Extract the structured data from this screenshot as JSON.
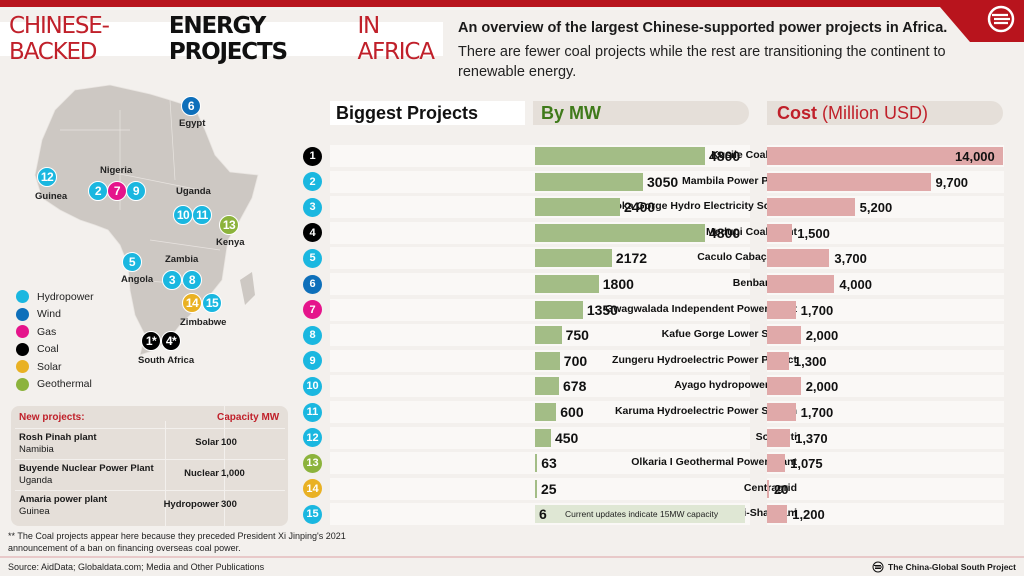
{
  "header": {
    "title_part1": "CHINESE-BACKED",
    "title_part2": "ENERGY PROJECTS",
    "title_part3": "IN AFRICA",
    "subtitle": "An overview of the largest Chinese-supported power projects in Africa.",
    "description": "There are fewer coal projects while the rest are transitioning the continent to renewable energy."
  },
  "colors": {
    "brand_red": "#b8141d",
    "hydropower": "#1ab7e0",
    "wind": "#0e6fba",
    "gas": "#e5148b",
    "coal": "#000000",
    "solar": "#e9b123",
    "geothermal": "#8cb33c",
    "mw_bar": "#a3bd86",
    "cost_bar": "#e0a9a9"
  },
  "map": {
    "markers": [
      {
        "label": "6",
        "type": "wind",
        "country": "Egypt"
      },
      {
        "label": "12",
        "type": "hydropower",
        "country": "Guinea"
      },
      {
        "label": "2",
        "type": "hydropower",
        "country": "Nigeria"
      },
      {
        "label": "7",
        "type": "gas",
        "country": "Nigeria"
      },
      {
        "label": "9",
        "type": "hydropower",
        "country": "Nigeria"
      },
      {
        "label": "10",
        "type": "hydropower",
        "country": "Uganda"
      },
      {
        "label": "11",
        "type": "hydropower",
        "country": "Uganda"
      },
      {
        "label": "13",
        "type": "geothermal",
        "country": "Kenya"
      },
      {
        "label": "5",
        "type": "hydropower",
        "country": "Angola"
      },
      {
        "label": "3",
        "type": "hydropower",
        "country": "Zambia"
      },
      {
        "label": "8",
        "type": "hydropower",
        "country": "Zambia"
      },
      {
        "label": "14",
        "type": "solar",
        "country": "Zimbabwe"
      },
      {
        "label": "15",
        "type": "hydropower",
        "country": "Zimbabwe"
      },
      {
        "label": "1*",
        "type": "coal",
        "country": "South Africa"
      },
      {
        "label": "4*",
        "type": "coal",
        "country": "South Africa"
      }
    ],
    "country_labels": [
      "Egypt",
      "Nigeria",
      "Guinea",
      "Uganda",
      "Kenya",
      "Angola",
      "Zambia",
      "Zimbabwe",
      "South Africa"
    ]
  },
  "legend": [
    {
      "label": "Hydropower",
      "type": "hydropower"
    },
    {
      "label": "Wind",
      "type": "wind"
    },
    {
      "label": "Gas",
      "type": "gas"
    },
    {
      "label": "Coal",
      "type": "coal"
    },
    {
      "label": "Solar",
      "type": "solar"
    },
    {
      "label": "Geothermal",
      "type": "geothermal"
    }
  ],
  "new_projects": {
    "header": "New projects:",
    "capacity_header": "Capacity MW",
    "rows": [
      {
        "name": "Rosh Pinah plant",
        "country": "Namibia",
        "type": "Solar",
        "capacity": "100"
      },
      {
        "name": "Buyende Nuclear Power Plant",
        "country": "Uganda",
        "type": "Nuclear",
        "capacity": "1,000"
      },
      {
        "name": "Amaria power plant",
        "country": "Guinea",
        "type": "Hydropower",
        "capacity": "300"
      }
    ]
  },
  "footnote": "** The Coal projects appear here because they preceded President Xi Jinping's 2021 announcement of a ban on financing overseas coal power.",
  "source": "Source: AidData; Globaldata.com; Media and Other Publications",
  "brand": "The China-Global South Project",
  "chart_headers": {
    "projects": "Biggest Projects",
    "mw": "By MW",
    "cost_bold": "Cost",
    "cost_unit": "(Million USD)"
  },
  "chart_data": {
    "type": "bar",
    "title": "Biggest Projects",
    "series": [
      {
        "name": "By MW",
        "values": [
          4800,
          3050,
          2400,
          4800,
          2172,
          1800,
          1350,
          750,
          700,
          678,
          600,
          450,
          63,
          25,
          6
        ]
      },
      {
        "name": "Cost (Million USD)",
        "values": [
          14000,
          9700,
          5200,
          1500,
          3700,
          4000,
          1700,
          2000,
          1300,
          2000,
          1700,
          1370,
          1075,
          20,
          1200
        ]
      }
    ],
    "categories": [
      "Kusile Coal Plant",
      "Mambila Power Project",
      "Batoka Gorge Hydro Electricity Scheme",
      "Medupi Coal Plant",
      "Caculo Cabaça dam",
      "Benban Park",
      "Gwagwalada Independent Power Plant",
      "Kafue Gorge Lower Station",
      "Zungeru Hydroelectric Power Project",
      "Ayago hydropower plant",
      "Karuma Hydroelectric Power Station",
      "Souapiti",
      "Olkaria I Geothermal Power Plant",
      "Centragrid",
      "Gwayi-Shangani"
    ],
    "projects": [
      {
        "num": "1",
        "name": "Kusile Coal Plant",
        "type": "coal",
        "mw": 4800,
        "mw_label": "4800",
        "cost": 14000,
        "cost_label": "14,000"
      },
      {
        "num": "2",
        "name": "Mambila Power Project",
        "type": "hydropower",
        "mw": 3050,
        "mw_label": "3050",
        "cost": 9700,
        "cost_label": "9,700"
      },
      {
        "num": "3",
        "name": "Batoka Gorge Hydro Electricity Scheme",
        "type": "hydropower",
        "mw": 2400,
        "mw_label": "2400",
        "cost": 5200,
        "cost_label": "5,200"
      },
      {
        "num": "4",
        "name": "Medupi Coal Plant",
        "type": "coal",
        "mw": 4800,
        "mw_label": "4800",
        "cost": 1500,
        "cost_label": "1,500"
      },
      {
        "num": "5",
        "name": "Caculo Cabaça dam",
        "type": "hydropower",
        "mw": 2172,
        "mw_label": "2172",
        "cost": 3700,
        "cost_label": "3,700"
      },
      {
        "num": "6",
        "name": "Benban Park",
        "type": "wind",
        "mw": 1800,
        "mw_label": "1800",
        "cost": 4000,
        "cost_label": "4,000"
      },
      {
        "num": "7",
        "name": "Gwagwalada Independent Power Plant",
        "type": "gas",
        "mw": 1350,
        "mw_label": "1350",
        "cost": 1700,
        "cost_label": "1,700"
      },
      {
        "num": "8",
        "name": "Kafue Gorge Lower Station",
        "type": "hydropower",
        "mw": 750,
        "mw_label": "750",
        "cost": 2000,
        "cost_label": "2,000"
      },
      {
        "num": "9",
        "name": "Zungeru Hydroelectric Power Project",
        "type": "hydropower",
        "mw": 700,
        "mw_label": "700",
        "cost": 1300,
        "cost_label": "1,300"
      },
      {
        "num": "10",
        "name": "Ayago hydropower plant",
        "type": "hydropower",
        "mw": 678,
        "mw_label": "678",
        "cost": 2000,
        "cost_label": "2,000"
      },
      {
        "num": "11",
        "name": "Karuma Hydroelectric Power Station",
        "type": "hydropower",
        "mw": 600,
        "mw_label": "600",
        "cost": 1700,
        "cost_label": "1,700"
      },
      {
        "num": "12",
        "name": "Souapiti",
        "type": "hydropower",
        "mw": 450,
        "mw_label": "450",
        "cost": 1370,
        "cost_label": "1,370"
      },
      {
        "num": "13",
        "name": "Olkaria I Geothermal Power Plant",
        "type": "geothermal",
        "mw": 63,
        "mw_label": "63",
        "cost": 1075,
        "cost_label": "1,075"
      },
      {
        "num": "14",
        "name": "Centragrid",
        "type": "solar",
        "mw": 25,
        "mw_label": "25",
        "cost": 20,
        "cost_label": "20"
      },
      {
        "num": "15",
        "name": "Gwayi-Shangani",
        "type": "hydropower",
        "mw": 6,
        "mw_label": "6",
        "cost": 1200,
        "cost_label": "1,200",
        "note": "Current updates indicate 15MW capacity"
      }
    ],
    "mw_max": 4800,
    "cost_max": 14000,
    "xlabel": "",
    "ylabel": "",
    "grid": false
  }
}
